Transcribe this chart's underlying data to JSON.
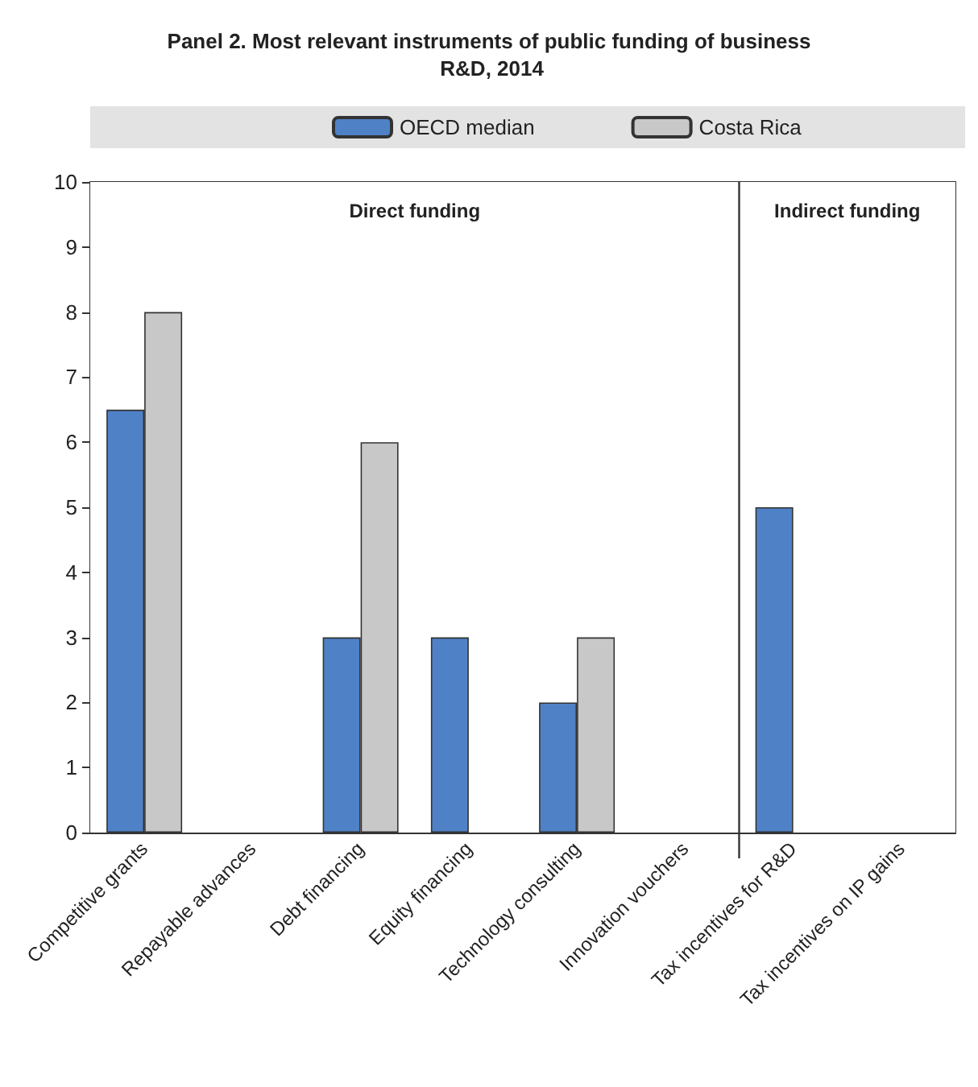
{
  "chart_data": {
    "type": "bar",
    "title": "Panel 2. Most relevant instruments of public funding of business R&D, 2014",
    "categories": [
      "Competitive grants",
      "Repayable advances",
      "Debt financing",
      "Equity financing",
      "Technology consulting",
      "Innovation vouchers",
      "Tax incentives for R&D",
      "Tax incentives on IP gains"
    ],
    "series": [
      {
        "name": "OECD median",
        "color": "#4f81c6",
        "values": [
          6.5,
          null,
          3,
          3,
          2,
          null,
          5,
          null
        ]
      },
      {
        "name": "Costa Rica",
        "color": "#c8c8c8",
        "values": [
          8,
          null,
          6,
          null,
          3,
          null,
          null,
          null
        ]
      }
    ],
    "ylim": [
      0,
      10
    ],
    "yticks": [
      0,
      1,
      2,
      3,
      4,
      5,
      6,
      7,
      8,
      9,
      10
    ],
    "legend": "top",
    "bands": [
      {
        "axis": "x",
        "from": "Competitive grants",
        "to": "Innovation vouchers",
        "label": "Direct funding",
        "color": "#ffffff"
      },
      {
        "axis": "x",
        "from": "Tax incentives for R&D",
        "to": "Tax incentives on IP gains",
        "label": "Indirect funding",
        "color": "#ffffff"
      }
    ]
  }
}
